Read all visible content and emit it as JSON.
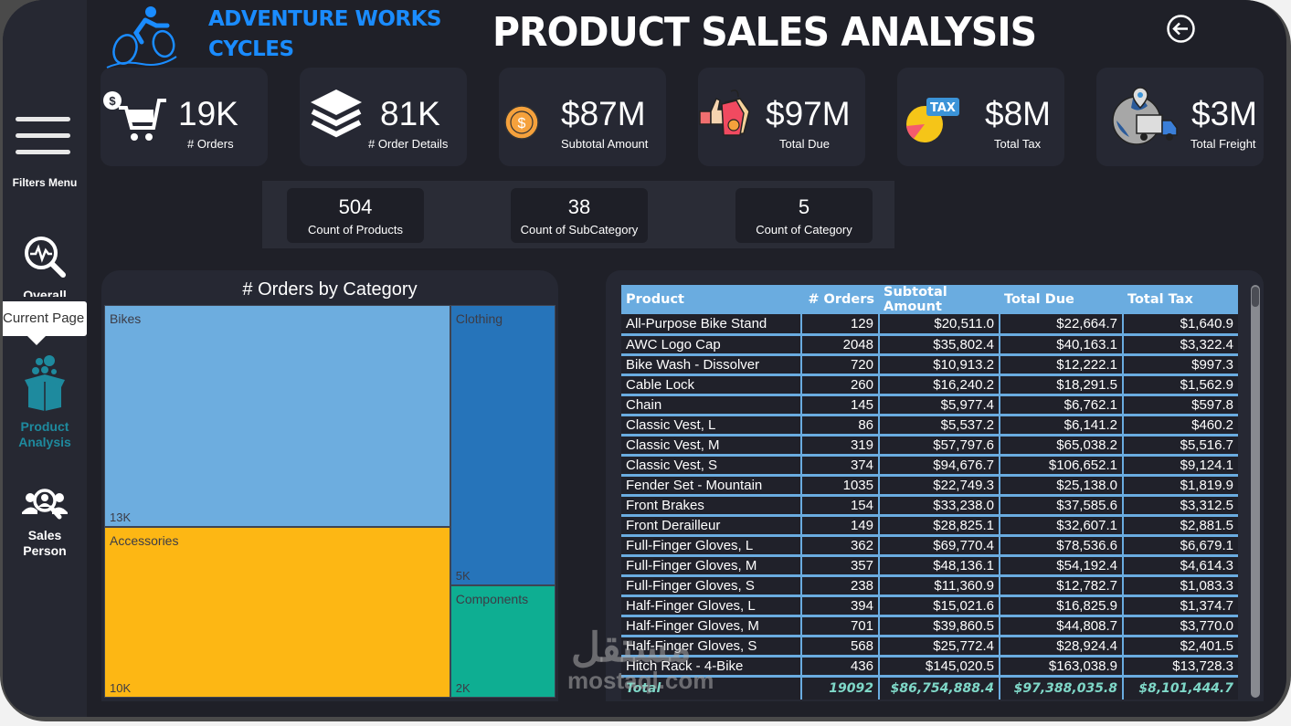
{
  "brand": {
    "name_line1": "ADVENTURE WORKS",
    "name_line2": "CYCLES",
    "accent": "#1a8cff"
  },
  "header": {
    "title": "PRODUCT SALES ANALYSIS",
    "back_icon": "arrow-left-circle-icon"
  },
  "sidebar": {
    "filters_label": "Filters Menu",
    "tooltip": "Current Page",
    "items": [
      {
        "label": "Overall",
        "icon": "analytics-search-icon",
        "active": false
      },
      {
        "label_line1": "Product",
        "label_line2": "Analysis",
        "icon": "open-box-icon",
        "active": true,
        "color": "#1e8a9e"
      },
      {
        "label_line1": "Sales",
        "label_line2": "Person",
        "icon": "person-search-icon",
        "active": false
      }
    ]
  },
  "kpis": [
    {
      "value": "19K",
      "caption": "# Orders",
      "icon": "shopping-cart-icon"
    },
    {
      "value": "81K",
      "caption": "# Order Details",
      "icon": "layers-icon"
    },
    {
      "value": "$87M",
      "caption": "Subtotal Amount",
      "icon": "coin-icon"
    },
    {
      "value": "$97M",
      "caption": "Total Due",
      "icon": "price-tag-icon"
    },
    {
      "value": "$8M",
      "caption": "Total Tax",
      "icon": "tax-pie-icon",
      "icon_text": "TAX"
    },
    {
      "value": "$3M",
      "caption": "Total Freight",
      "icon": "delivery-truck-icon"
    }
  ],
  "counts": [
    {
      "value": "504",
      "caption": "Count of Products"
    },
    {
      "value": "38",
      "caption": "Count of SubCategory"
    },
    {
      "value": "5",
      "caption": "Count of Category"
    }
  ],
  "chart_data": {
    "type": "treemap",
    "title": "# Orders by Category",
    "categories": [
      "Bikes",
      "Accessories",
      "Clothing",
      "Components"
    ],
    "values": [
      13000,
      10000,
      5000,
      2000
    ],
    "labels": [
      "13K",
      "10K",
      "5K",
      "2K"
    ],
    "colors": [
      "#6daddf",
      "#fdb714",
      "#2674ba",
      "#0eae92"
    ]
  },
  "table": {
    "columns": [
      "Product",
      "# Orders",
      "Subtotal Amount",
      "Total Due",
      "Total Tax"
    ],
    "rows": [
      [
        "All-Purpose Bike Stand",
        "129",
        "$20,511.0",
        "$22,664.7",
        "$1,640.9"
      ],
      [
        "AWC Logo Cap",
        "2048",
        "$35,802.4",
        "$40,163.1",
        "$3,322.4"
      ],
      [
        "Bike Wash - Dissolver",
        "720",
        "$10,913.2",
        "$12,222.1",
        "$997.3"
      ],
      [
        "Cable Lock",
        "260",
        "$16,240.2",
        "$18,291.5",
        "$1,562.9"
      ],
      [
        "Chain",
        "145",
        "$5,977.4",
        "$6,762.1",
        "$597.8"
      ],
      [
        "Classic Vest, L",
        "86",
        "$5,537.2",
        "$6,141.2",
        "$460.2"
      ],
      [
        "Classic Vest, M",
        "319",
        "$57,797.6",
        "$65,038.2",
        "$5,516.7"
      ],
      [
        "Classic Vest, S",
        "374",
        "$94,676.7",
        "$106,652.1",
        "$9,124.1"
      ],
      [
        "Fender Set - Mountain",
        "1035",
        "$22,749.3",
        "$25,138.0",
        "$1,819.9"
      ],
      [
        "Front Brakes",
        "154",
        "$33,238.0",
        "$37,585.6",
        "$3,312.5"
      ],
      [
        "Front Derailleur",
        "149",
        "$28,825.1",
        "$32,607.1",
        "$2,881.5"
      ],
      [
        "Full-Finger Gloves, L",
        "362",
        "$69,770.4",
        "$78,536.6",
        "$6,679.1"
      ],
      [
        "Full-Finger Gloves, M",
        "357",
        "$48,136.1",
        "$54,192.4",
        "$4,614.3"
      ],
      [
        "Full-Finger Gloves, S",
        "238",
        "$11,360.9",
        "$12,782.7",
        "$1,083.3"
      ],
      [
        "Half-Finger Gloves, L",
        "394",
        "$15,021.6",
        "$16,825.9",
        "$1,374.7"
      ],
      [
        "Half-Finger Gloves, M",
        "701",
        "$39,860.5",
        "$44,808.7",
        "$3,770.0"
      ],
      [
        "Half-Finger Gloves, S",
        "568",
        "$25,772.4",
        "$28,924.4",
        "$2,401.5"
      ],
      [
        "Hitch Rack - 4-Bike",
        "436",
        "$145,020.5",
        "$163,038.9",
        "$13,728.3"
      ]
    ],
    "total": [
      "Total",
      "19092",
      "$86,754,888.4",
      "$97,388,035.8",
      "$8,101,444.7"
    ]
  },
  "watermark": {
    "arabic": "مستقل",
    "latin": "mostaql.com"
  }
}
